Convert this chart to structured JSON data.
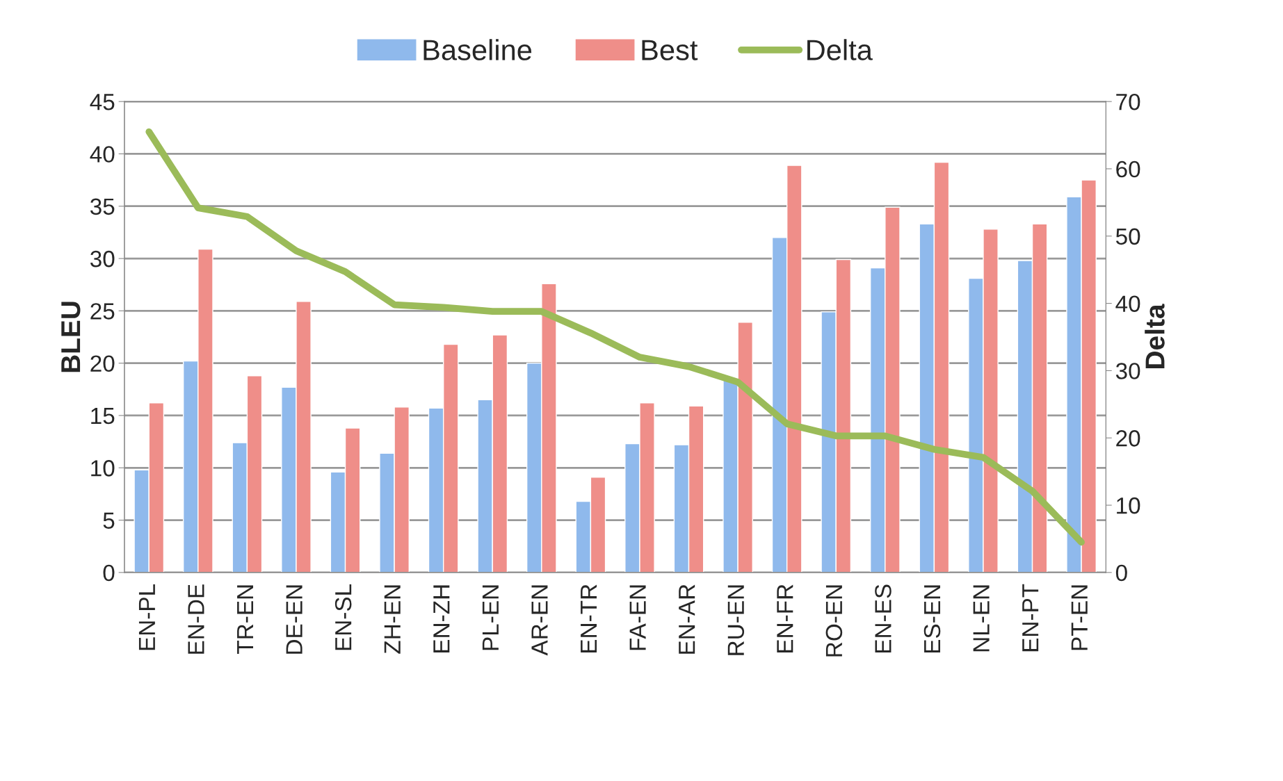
{
  "chart_data": {
    "type": "bar",
    "ylabel": "BLEU",
    "y2label": "Delta",
    "categories": [
      "EN-PL",
      "EN-DE",
      "TR-EN",
      "DE-EN",
      "EN-SL",
      "ZH-EN",
      "EN-ZH",
      "PL-EN",
      "AR-EN",
      "EN-TR",
      "FA-EN",
      "EN-AR",
      "RU-EN",
      "EN-FR",
      "RO-EN",
      "EN-ES",
      "ES-EN",
      "NL-EN",
      "EN-PT",
      "PT-EN"
    ],
    "series": [
      {
        "name": "Baseline",
        "color": "#8fb9ec",
        "values": [
          9.8,
          20.2,
          12.4,
          17.7,
          9.6,
          11.4,
          15.7,
          16.5,
          20.0,
          6.8,
          12.3,
          12.2,
          18.4,
          32.0,
          24.9,
          29.1,
          33.3,
          28.1,
          29.8,
          35.9
        ]
      },
      {
        "name": "Best",
        "color": "#ef8e89",
        "values": [
          16.2,
          30.9,
          18.8,
          25.9,
          13.8,
          15.8,
          21.8,
          22.7,
          27.6,
          9.1,
          16.2,
          15.9,
          23.9,
          38.9,
          29.9,
          34.9,
          39.2,
          32.8,
          33.3,
          37.5
        ]
      },
      {
        "name": "Delta",
        "type": "line",
        "axis": "y2",
        "color": "#9bbb59",
        "values": [
          65.5,
          54.2,
          52.9,
          47.8,
          44.7,
          39.8,
          39.4,
          38.8,
          38.8,
          35.6,
          32.0,
          30.6,
          28.3,
          22.1,
          20.3,
          20.3,
          18.3,
          17.1,
          12.1,
          4.5
        ]
      }
    ],
    "ylim": [
      0,
      45
    ],
    "yticks": [
      0,
      5,
      10,
      15,
      20,
      25,
      30,
      35,
      40,
      45
    ],
    "y2lim": [
      0,
      70
    ],
    "y2ticks": [
      0,
      10,
      20,
      30,
      40,
      50,
      60,
      70
    ],
    "grid": "y",
    "legend": "top"
  }
}
